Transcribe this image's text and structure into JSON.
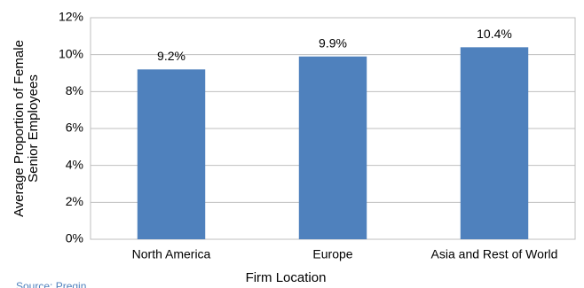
{
  "chart_data": {
    "type": "bar",
    "ylabel": [
      "Average Proportion of Female",
      "Senior Employees"
    ],
    "xlabel": "Firm Location",
    "source": "Source: Preqin",
    "categories": [
      "North America",
      "Europe",
      "Asia and Rest of World"
    ],
    "values": [
      9.2,
      9.9,
      10.4
    ],
    "value_labels": [
      "9.2%",
      "9.9%",
      "10.4%"
    ],
    "color": "#4f81bd",
    "ylim": [
      0,
      12
    ],
    "yticks": [
      {
        "value": 0,
        "label": "0%"
      },
      {
        "value": 2,
        "label": "2%"
      },
      {
        "value": 4,
        "label": "4%"
      },
      {
        "value": 6,
        "label": "6%"
      },
      {
        "value": 8,
        "label": "8%"
      },
      {
        "value": 10,
        "label": "10%"
      },
      {
        "value": 12,
        "label": "12%"
      }
    ],
    "grid": true
  }
}
